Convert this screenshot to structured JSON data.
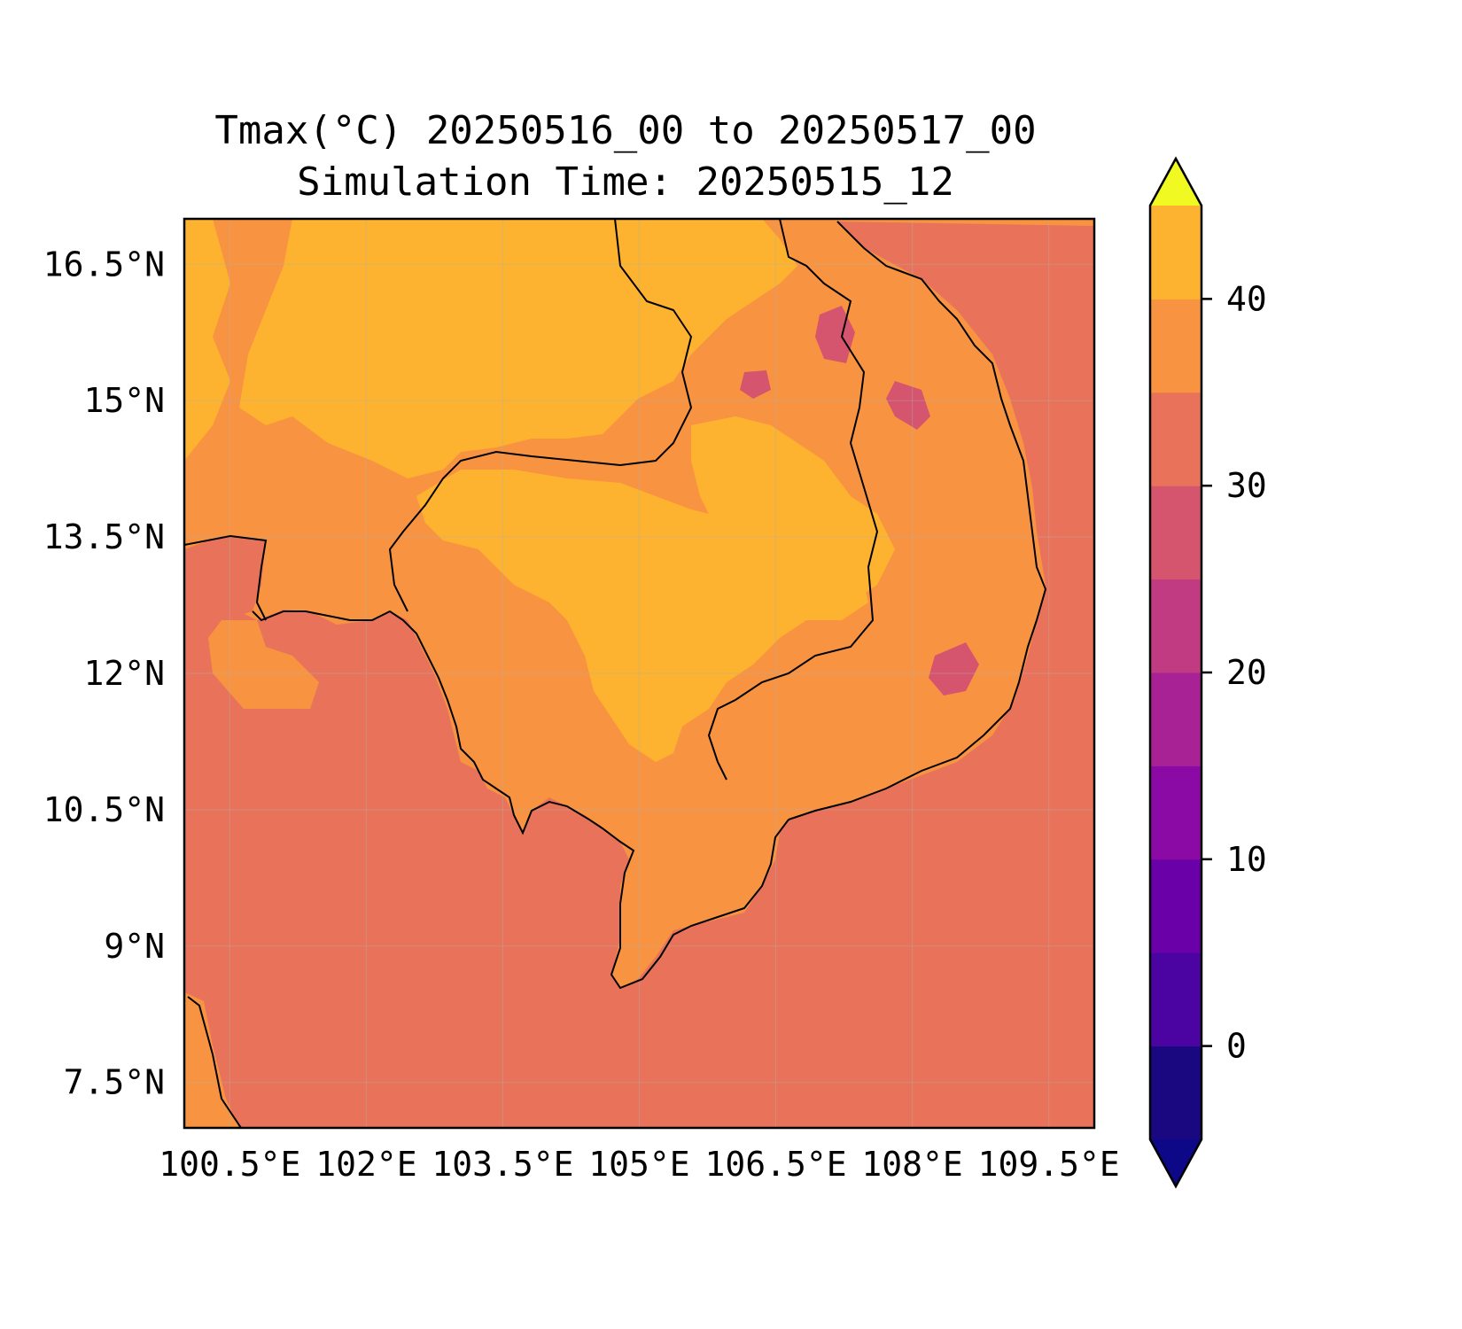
{
  "title": {
    "line1": "Tmax(°C) 20250516_00 to 20250517_00",
    "line2": "Simulation Time: 20250515_12"
  },
  "map": {
    "lon_range": [
      100.0,
      110.0
    ],
    "lat_range": [
      7.0,
      17.0
    ],
    "grid": true,
    "coastlines": true,
    "borders": true,
    "x_ticks": [
      {
        "value": 100.5,
        "label": "100.5°E"
      },
      {
        "value": 102.0,
        "label": "102°E"
      },
      {
        "value": 103.5,
        "label": "103.5°E"
      },
      {
        "value": 105.0,
        "label": "105°E"
      },
      {
        "value": 106.5,
        "label": "106.5°E"
      },
      {
        "value": 108.0,
        "label": "108°E"
      },
      {
        "value": 109.5,
        "label": "109.5°E"
      }
    ],
    "y_ticks": [
      {
        "value": 16.5,
        "label": "16.5°N"
      },
      {
        "value": 15.0,
        "label": "15°N"
      },
      {
        "value": 13.5,
        "label": "13.5°N"
      },
      {
        "value": 12.0,
        "label": "12°N"
      },
      {
        "value": 10.5,
        "label": "10.5°N"
      },
      {
        "value": 9.0,
        "label": "9°N"
      },
      {
        "value": 7.5,
        "label": "7.5°N"
      }
    ]
  },
  "colorbar": {
    "levels": [
      -5,
      0,
      5,
      10,
      15,
      20,
      25,
      30,
      35,
      40,
      45
    ],
    "colors": [
      "#1a0880",
      "#4b03a1",
      "#6a00a8",
      "#8b0aa5",
      "#a82296",
      "#c13b82",
      "#d5546e",
      "#e8735a",
      "#f89441",
      "#fdb32f",
      "#f5e125"
    ],
    "extend_under_color": "#0d0887",
    "extend_over_color": "#f0f921",
    "ticks": [
      {
        "value": 0,
        "label": "0"
      },
      {
        "value": 10,
        "label": "10"
      },
      {
        "value": 20,
        "label": "20"
      },
      {
        "value": 30,
        "label": "30"
      },
      {
        "value": 40,
        "label": "40"
      }
    ]
  }
}
